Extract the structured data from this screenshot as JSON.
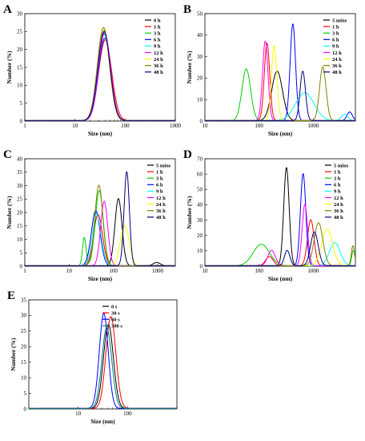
{
  "chart_data": [
    {
      "panel": "A",
      "type": "line",
      "xscale": "log",
      "xlim": [
        1,
        1000
      ],
      "ylim": [
        0,
        30
      ],
      "xticks": [
        "1",
        "10",
        "100",
        "1000"
      ],
      "yticks": [
        "0",
        "5",
        "10",
        "15",
        "20",
        "25",
        "30"
      ],
      "xlabel": "Size (nm)",
      "ylabel": "Number (%)",
      "series": [
        {
          "name": "0 h",
          "color": "#000000",
          "peaks": [
            {
              "x": 38,
              "y": 24.5,
              "w": 0.12
            }
          ]
        },
        {
          "name": "1 h",
          "color": "#ff0000",
          "peaks": [
            {
              "x": 40,
              "y": 22.5,
              "w": 0.13
            }
          ]
        },
        {
          "name": "3 h",
          "color": "#00cc00",
          "peaks": [
            {
              "x": 38,
              "y": 25.0,
              "w": 0.12
            }
          ]
        },
        {
          "name": "6 h",
          "color": "#0000ff",
          "peaks": [
            {
              "x": 39,
              "y": 23.0,
              "w": 0.12
            }
          ]
        },
        {
          "name": "9 h",
          "color": "#00ffff",
          "peaks": [
            {
              "x": 38,
              "y": 24.0,
              "w": 0.12
            }
          ]
        },
        {
          "name": "12 h",
          "color": "#ff00ff",
          "peaks": [
            {
              "x": 39,
              "y": 24.5,
              "w": 0.12
            }
          ]
        },
        {
          "name": "24 h",
          "color": "#ffff00",
          "peaks": [
            {
              "x": 37,
              "y": 25.5,
              "w": 0.12
            }
          ]
        },
        {
          "name": "36 h",
          "color": "#808000",
          "peaks": [
            {
              "x": 37,
              "y": 26.0,
              "w": 0.12
            }
          ]
        },
        {
          "name": "48 h",
          "color": "#000080",
          "peaks": [
            {
              "x": 38,
              "y": 25.0,
              "w": 0.12
            }
          ]
        }
      ]
    },
    {
      "panel": "B",
      "type": "line",
      "xscale": "log",
      "xlim": [
        10,
        6000
      ],
      "ylim": [
        0,
        50
      ],
      "xticks": [
        "10",
        "100",
        "1000"
      ],
      "yticks": [
        "0",
        "10",
        "20",
        "30",
        "40",
        "50"
      ],
      "xlabel": "Size (nm)",
      "ylabel": "Number (%)",
      "series": [
        {
          "name": "5 mins",
          "color": "#000000",
          "peaks": [
            {
              "x": 215,
              "y": 23,
              "w": 0.1
            }
          ]
        },
        {
          "name": "1 h",
          "color": "#ff0000",
          "peaks": [
            {
              "x": 140,
              "y": 36,
              "w": 0.05
            }
          ]
        },
        {
          "name": "3 h",
          "color": "#00cc00",
          "peaks": [
            {
              "x": 58,
              "y": 24,
              "w": 0.08
            }
          ]
        },
        {
          "name": "6 h",
          "color": "#0000ff",
          "peaks": [
            {
              "x": 420,
              "y": 45,
              "w": 0.05
            },
            {
              "x": 4700,
              "y": 4,
              "w": 0.05
            }
          ]
        },
        {
          "name": "9 h",
          "color": "#00ffff",
          "peaks": [
            {
              "x": 700,
              "y": 13,
              "w": 0.17
            },
            {
              "x": 3800,
              "y": 3,
              "w": 0.06
            }
          ]
        },
        {
          "name": "12 h",
          "color": "#ff00ff",
          "peaks": [
            {
              "x": 130,
              "y": 37,
              "w": 0.05
            }
          ]
        },
        {
          "name": "24 h",
          "color": "#ffff00",
          "peaks": [
            {
              "x": 190,
              "y": 35,
              "w": 0.05
            }
          ]
        },
        {
          "name": "36 h",
          "color": "#808000",
          "peaks": [
            {
              "x": 1500,
              "y": 25,
              "w": 0.06
            }
          ]
        },
        {
          "name": "48 h",
          "color": "#000080",
          "peaks": [
            {
              "x": 640,
              "y": 23,
              "w": 0.05
            }
          ]
        }
      ]
    },
    {
      "panel": "C",
      "type": "line",
      "xscale": "log",
      "xlim": [
        1,
        2500
      ],
      "ylim": [
        0,
        40
      ],
      "xticks": [
        "1",
        "10",
        "100",
        "1000"
      ],
      "yticks": [
        "0",
        "5",
        "10",
        "15",
        "20",
        "25",
        "30",
        "35",
        "40"
      ],
      "xlabel": "Size (nm)",
      "ylabel": "Number (%)",
      "series": [
        {
          "name": "5 mins",
          "color": "#000000",
          "peaks": [
            {
              "x": 130,
              "y": 25,
              "w": 0.08
            },
            {
              "x": 950,
              "y": 1.2,
              "w": 0.08
            }
          ]
        },
        {
          "name": "1 h",
          "color": "#ff0000",
          "peaks": [
            {
              "x": 45,
              "y": 19,
              "w": 0.1
            }
          ]
        },
        {
          "name": "3 h",
          "color": "#00cc00",
          "peaks": [
            {
              "x": 48,
              "y": 28,
              "w": 0.09
            },
            {
              "x": 22,
              "y": 10.5,
              "w": 0.04
            }
          ]
        },
        {
          "name": "6 h",
          "color": "#0000ff",
          "peaks": [
            {
              "x": 40,
              "y": 20.5,
              "w": 0.1
            }
          ]
        },
        {
          "name": "9 h",
          "color": "#00ffff",
          "peaks": [
            {
              "x": 42,
              "y": 19,
              "w": 0.1
            }
          ]
        },
        {
          "name": "12 h",
          "color": "#ff00ff",
          "peaks": [
            {
              "x": 62,
              "y": 24,
              "w": 0.08
            }
          ]
        },
        {
          "name": "24 h",
          "color": "#ffff00",
          "peaks": [
            {
              "x": 180,
              "y": 15,
              "w": 0.1
            }
          ]
        },
        {
          "name": "36 h",
          "color": "#808000",
          "peaks": [
            {
              "x": 47,
              "y": 30,
              "w": 0.09
            }
          ]
        },
        {
          "name": "48 h",
          "color": "#000080",
          "peaks": [
            {
              "x": 200,
              "y": 35,
              "w": 0.06
            }
          ]
        }
      ]
    },
    {
      "panel": "D",
      "type": "line",
      "xscale": "log",
      "xlim": [
        10,
        6000
      ],
      "ylim": [
        0,
        70
      ],
      "xticks": [
        "10",
        "100",
        "1000"
      ],
      "yticks": [
        "0",
        "10",
        "20",
        "30",
        "40",
        "50",
        "60",
        "70"
      ],
      "xlabel": "Size (nm)",
      "ylabel": "Number (%)",
      "series": [
        {
          "name": "5 mins",
          "color": "#000000",
          "peaks": [
            {
              "x": 320,
              "y": 64,
              "w": 0.05
            }
          ]
        },
        {
          "name": "1 h",
          "color": "#ff0000",
          "peaks": [
            {
              "x": 155,
              "y": 6,
              "w": 0.07
            },
            {
              "x": 900,
              "y": 30,
              "w": 0.06
            }
          ]
        },
        {
          "name": "3 h",
          "color": "#00cc00",
          "peaks": [
            {
              "x": 110,
              "y": 14,
              "w": 0.15
            },
            {
              "x": 5500,
              "y": 10,
              "w": 0.03
            }
          ]
        },
        {
          "name": "6 h",
          "color": "#0000ff",
          "peaks": [
            {
              "x": 650,
              "y": 60,
              "w": 0.05
            }
          ]
        },
        {
          "name": "9 h",
          "color": "#00ffff",
          "peaks": [
            {
              "x": 2500,
              "y": 15,
              "w": 0.1
            }
          ]
        },
        {
          "name": "12 h",
          "color": "#ff00ff",
          "peaks": [
            {
              "x": 170,
              "y": 10,
              "w": 0.07
            },
            {
              "x": 700,
              "y": 40,
              "w": 0.05
            }
          ]
        },
        {
          "name": "24 h",
          "color": "#ffff00",
          "peaks": [
            {
              "x": 1800,
              "y": 24,
              "w": 0.1
            }
          ]
        },
        {
          "name": "36 h",
          "color": "#808000",
          "peaks": [
            {
              "x": 1250,
              "y": 28,
              "w": 0.08
            },
            {
              "x": 5400,
              "y": 13,
              "w": 0.03
            }
          ]
        },
        {
          "name": "48 h",
          "color": "#000080",
          "peaks": [
            {
              "x": 1050,
              "y": 22,
              "w": 0.07
            },
            {
              "x": 330,
              "y": 10,
              "w": 0.05
            }
          ]
        }
      ]
    },
    {
      "panel": "E",
      "type": "line",
      "xscale": "log",
      "xlim": [
        1,
        1000
      ],
      "ylim": [
        0,
        35
      ],
      "xticks": [
        "10",
        "100"
      ],
      "yticks": [
        "0",
        "5",
        "10",
        "15",
        "20",
        "25",
        "30",
        "35"
      ],
      "xlabel": "Size (nm)",
      "ylabel": "Number (%)",
      "series": [
        {
          "name": "0 s",
          "color": "#000000",
          "peaks": [
            {
              "x": 41,
              "y": 27,
              "w": 0.1
            }
          ]
        },
        {
          "name": "30 s",
          "color": "#ff0000",
          "peaks": [
            {
              "x": 46,
              "y": 29.5,
              "w": 0.1
            }
          ]
        },
        {
          "name": "60 s",
          "color": "#0000ff",
          "peaks": [
            {
              "x": 33,
              "y": 30.5,
              "w": 0.09
            }
          ]
        },
        {
          "name": "300 s",
          "color": "#008080",
          "peaks": [
            {
              "x": 38,
              "y": 26,
              "w": 0.1
            }
          ]
        }
      ]
    }
  ]
}
